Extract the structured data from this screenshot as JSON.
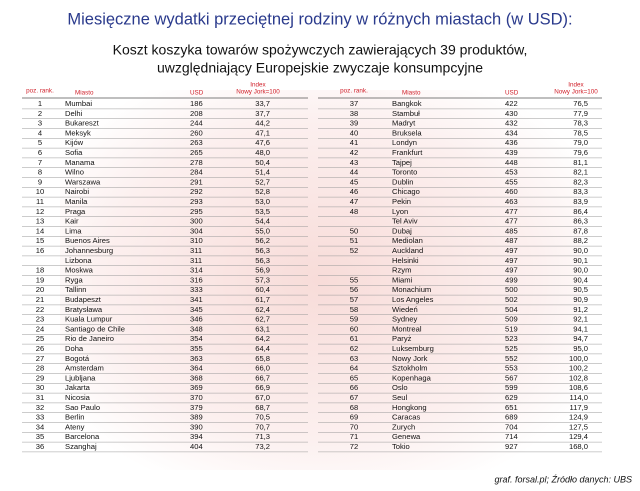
{
  "header": {
    "title": "Miesięczne wydatki przeciętnej rodziny w różnych miastach (w USD):",
    "subtitle_lines": [
      "Koszt koszyka towarów spożywczych zawierających 39 produktów,",
      "uwzględniający Europejskie zwyczaje konsumpcyjne"
    ]
  },
  "columns": [
    "poz. rank.",
    "Miasto",
    "USD",
    "Index",
    "Nowy Jork=100"
  ],
  "left_table": {
    "highlight_row": 8,
    "highlight_color": "#e0201f",
    "rows": [
      [
        1,
        "Mumbai",
        186,
        "33,7"
      ],
      [
        2,
        "Delhi",
        208,
        "37,7"
      ],
      [
        3,
        "Bukareszt",
        244,
        "44,2"
      ],
      [
        4,
        "Meksyk",
        260,
        "47,1"
      ],
      [
        5,
        "Kijów",
        263,
        "47,6"
      ],
      [
        6,
        "Sofia",
        265,
        "48,0"
      ],
      [
        7,
        "Manama",
        278,
        "50,4"
      ],
      [
        8,
        "Wilno",
        284,
        "51,4"
      ],
      [
        9,
        "Warszawa",
        291,
        "52,7"
      ],
      [
        10,
        "Nairobi",
        292,
        "52,8"
      ],
      [
        11,
        "Manila",
        293,
        "53,0"
      ],
      [
        12,
        "Praga",
        295,
        "53,5"
      ],
      [
        13,
        "Kair",
        300,
        "54,4"
      ],
      [
        14,
        "Lima",
        304,
        "55,0"
      ],
      [
        15,
        "Buenos Aires",
        310,
        "56,2"
      ],
      [
        16,
        "Johannesburg",
        311,
        "56,3"
      ],
      [
        null,
        "Lizbona",
        311,
        "56,3"
      ],
      [
        18,
        "Moskwa",
        314,
        "56,9"
      ],
      [
        19,
        "Ryga",
        316,
        "57,3"
      ],
      [
        20,
        "Tallinn",
        333,
        "60,4"
      ],
      [
        21,
        "Budapeszt",
        341,
        "61,7"
      ],
      [
        22,
        "Bratysława",
        345,
        "62,4"
      ],
      [
        23,
        "Kuala Lumpur",
        346,
        "62,7"
      ],
      [
        24,
        "Santiago de Chile",
        348,
        "63,1"
      ],
      [
        25,
        "Rio de Janeiro",
        354,
        "64,2"
      ],
      [
        26,
        "Doha",
        355,
        "64,4"
      ],
      [
        27,
        "Bogotá",
        363,
        "65,8"
      ],
      [
        28,
        "Amsterdam",
        364,
        "66,0"
      ],
      [
        29,
        "Ljubljana",
        368,
        "66,7"
      ],
      [
        30,
        "Jakarta",
        369,
        "66,9"
      ],
      [
        31,
        "Nicosia",
        370,
        "67,0"
      ],
      [
        32,
        "Sao Paulo",
        379,
        "68,7"
      ],
      [
        33,
        "Berlin",
        389,
        "70,5"
      ],
      [
        34,
        "Ateny",
        390,
        "70,7"
      ],
      [
        35,
        "Barcelona",
        394,
        "71,3"
      ],
      [
        36,
        "Szanghaj",
        404,
        "73,2"
      ]
    ]
  },
  "right_table": {
    "rows": [
      [
        37,
        "Bangkok",
        422,
        "76,5"
      ],
      [
        38,
        "Stambuł",
        430,
        "77,9"
      ],
      [
        39,
        "Madryt",
        432,
        "78,3"
      ],
      [
        40,
        "Bruksela",
        434,
        "78,5"
      ],
      [
        41,
        "Londyn",
        436,
        "79,0"
      ],
      [
        42,
        "Frankfurt",
        439,
        "79,6"
      ],
      [
        43,
        "Tajpej",
        448,
        "81,1"
      ],
      [
        44,
        "Toronto",
        453,
        "82,1"
      ],
      [
        45,
        "Dublin",
        455,
        "82,3"
      ],
      [
        46,
        "Chicago",
        460,
        "83,3"
      ],
      [
        47,
        "Pekin",
        463,
        "83,9"
      ],
      [
        48,
        "Lyon",
        477,
        "86,4"
      ],
      [
        null,
        "Tel Aviv",
        477,
        "86,3"
      ],
      [
        50,
        "Dubaj",
        485,
        "87,8"
      ],
      [
        51,
        "Mediolan",
        487,
        "88,2"
      ],
      [
        52,
        "Auckland",
        497,
        "90,0"
      ],
      [
        null,
        "Helsinki",
        497,
        "90,1"
      ],
      [
        null,
        "Rzym",
        497,
        "90,0"
      ],
      [
        55,
        "Miami",
        499,
        "90,4"
      ],
      [
        56,
        "Monachium",
        500,
        "90,5"
      ],
      [
        57,
        "Los Angeles",
        502,
        "90,9"
      ],
      [
        58,
        "Wiedeń",
        504,
        "91,2"
      ],
      [
        59,
        "Sydney",
        509,
        "92,1"
      ],
      [
        60,
        "Montreal",
        519,
        "94,1"
      ],
      [
        61,
        "Paryż",
        523,
        "94,7"
      ],
      [
        62,
        "Luksemburg",
        525,
        "95,0"
      ],
      [
        63,
        "Nowy Jork",
        552,
        "100,0"
      ],
      [
        64,
        "Sztokholm",
        553,
        "100,2"
      ],
      [
        65,
        "Kopenhaga",
        567,
        "102,8"
      ],
      [
        66,
        "Oslo",
        599,
        "108,6"
      ],
      [
        67,
        "Seul",
        629,
        "114,0"
      ],
      [
        68,
        "Hongkong",
        651,
        "117,9"
      ],
      [
        69,
        "Caracas",
        689,
        "124,9"
      ],
      [
        70,
        "Zurych",
        704,
        "127,5"
      ],
      [
        71,
        "Genewa",
        714,
        "129,4"
      ],
      [
        72,
        "Tokio",
        927,
        "168,0"
      ]
    ]
  },
  "footer": "graf. forsal.pl; Źródło danych: UBS"
}
